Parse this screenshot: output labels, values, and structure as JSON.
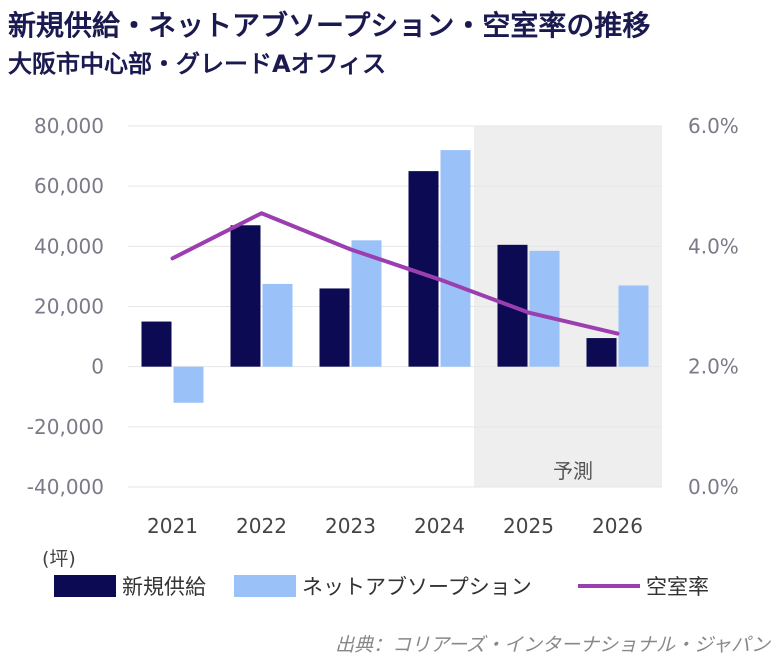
{
  "title": "新規供給・ネットアブソープション・空室率の推移",
  "subtitle": "大阪市中心部・グレードAオフィス",
  "source": "出典：コリアーズ・インターナショナル・ジャパン",
  "colors": {
    "supply": "#0b0a52",
    "absorption": "#9bc2f8",
    "vacancy": "#9b3fb0",
    "forecast_bg": "#eeeeee",
    "text": "#1a1a50",
    "axis_text": "#7a7a88",
    "grid": "#e6e6e6"
  },
  "chart_data": {
    "type": "bar",
    "categories": [
      "2021",
      "2022",
      "2023",
      "2024",
      "2025",
      "2026"
    ],
    "y_unit": "(坪)",
    "ylim": [
      -40000,
      80000
    ],
    "y_ticks": [
      -40000,
      -20000,
      0,
      20000,
      40000,
      60000,
      80000
    ],
    "y_tick_labels": [
      "-40,000",
      "-20,000",
      "0",
      "20,000",
      "40,000",
      "60,000",
      "80,000"
    ],
    "y2lim": [
      0.0,
      6.0
    ],
    "y2_ticks": [
      0.0,
      2.0,
      4.0,
      6.0
    ],
    "y2_tick_labels": [
      "0.0%",
      "2.0%",
      "4.0%",
      "6.0%"
    ],
    "series": [
      {
        "name": "新規供給",
        "type": "bar",
        "values": [
          15000,
          47000,
          26000,
          65000,
          40500,
          9500
        ]
      },
      {
        "name": "ネットアブソープション",
        "type": "bar",
        "values": [
          -12000,
          27500,
          42000,
          72000,
          38500,
          27000
        ]
      },
      {
        "name": "空室率",
        "type": "line",
        "axis": "right",
        "values": [
          3.8,
          4.55,
          3.95,
          3.45,
          2.9,
          2.55
        ]
      }
    ],
    "forecast": {
      "label": "予測",
      "from": "2025",
      "to": "2026"
    },
    "grid": true,
    "legend": "bottom"
  }
}
